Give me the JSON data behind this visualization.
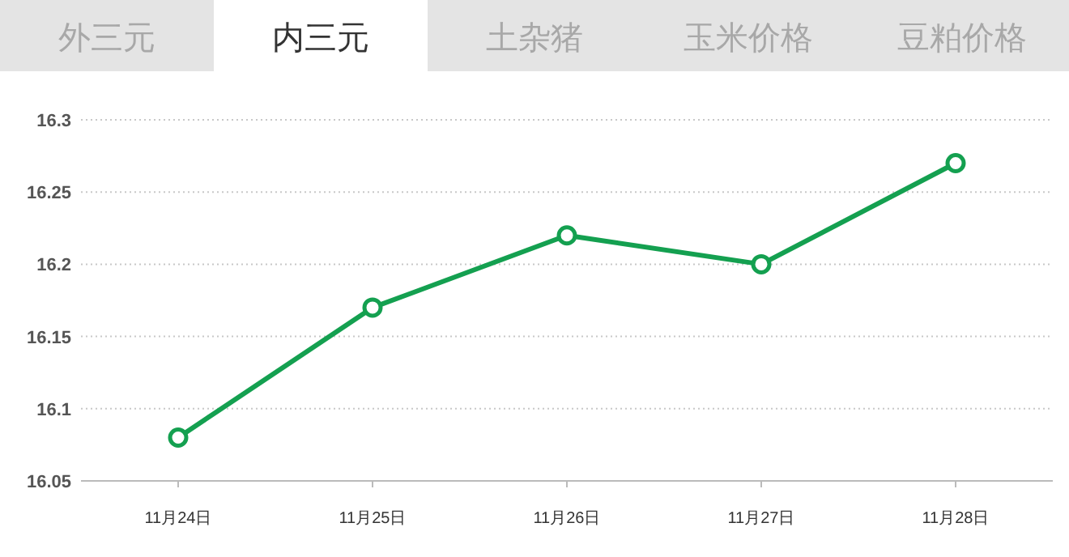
{
  "chart_data": {
    "type": "line",
    "title": "内三元",
    "annotations": [
      "外三元",
      "土杂猪",
      "玉米价格",
      "豆粕价格"
    ],
    "categories": [
      "11月24日",
      "11月25日",
      "11月26日",
      "11月27日",
      "11月28日"
    ],
    "series": [
      {
        "color": "#14a050",
        "values": [
          16.08,
          16.17,
          16.22,
          16.2,
          16.27
        ]
      }
    ],
    "ylim": [
      16.05,
      16.3
    ],
    "yticks": [
      16.05,
      16.1,
      16.15,
      16.2,
      16.25,
      16.3
    ],
    "grid": "y",
    "marker": "circle",
    "line_style": "solid"
  }
}
